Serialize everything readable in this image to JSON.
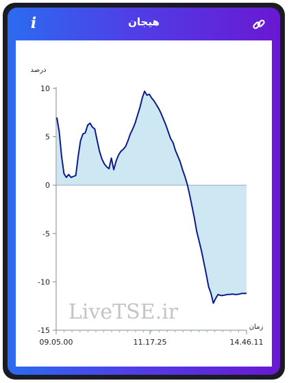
{
  "header": {
    "title": "هیجان",
    "info_icon": "info-icon",
    "link_icon": "link-icon"
  },
  "watermark": "LiveTSE.ir",
  "chart_data": {
    "type": "area",
    "ylabel": "درصد",
    "xlabel": "زمان",
    "ylim": [
      -15,
      10
    ],
    "yticks": [
      10,
      5,
      0,
      -5,
      -10,
      -15
    ],
    "xticks": [
      "09.05.00",
      "11.17.25",
      "14.46.11"
    ],
    "fill_color": "#cde7f3",
    "line_color": "#0a1a8c",
    "series": [
      {
        "values": [
          7,
          5.5,
          3,
          1.2,
          0.8,
          1.1,
          0.8,
          0.9,
          1.0,
          3.0,
          4.6,
          5.3,
          5.4,
          6.2,
          6.4,
          6.0,
          5.8,
          4.6,
          3.5,
          2.7,
          2.2,
          1.9,
          1.7,
          2.8,
          1.6,
          2.5,
          3.1,
          3.5,
          3.7,
          4.0,
          4.6,
          5.3,
          5.8,
          6.4,
          7.2,
          8.0,
          9.0,
          9.7,
          9.3,
          9.4,
          9.0,
          8.7,
          8.3,
          7.9,
          7.4,
          6.8,
          6.2,
          5.5,
          4.8,
          4.4,
          3.6,
          3.0,
          2.4,
          1.6,
          0.9,
          0.1,
          -1.0,
          -2.2,
          -3.4,
          -4.8,
          -5.8,
          -6.8,
          -8.0,
          -9.2,
          -10.5,
          -11.2,
          -12.2,
          -11.7,
          -11.3,
          -11.4,
          -11.4,
          -11.35,
          -11.3,
          -11.3,
          -11.25,
          -11.3,
          -11.3,
          -11.25,
          -11.2,
          -11.2,
          -11.2
        ]
      }
    ]
  }
}
